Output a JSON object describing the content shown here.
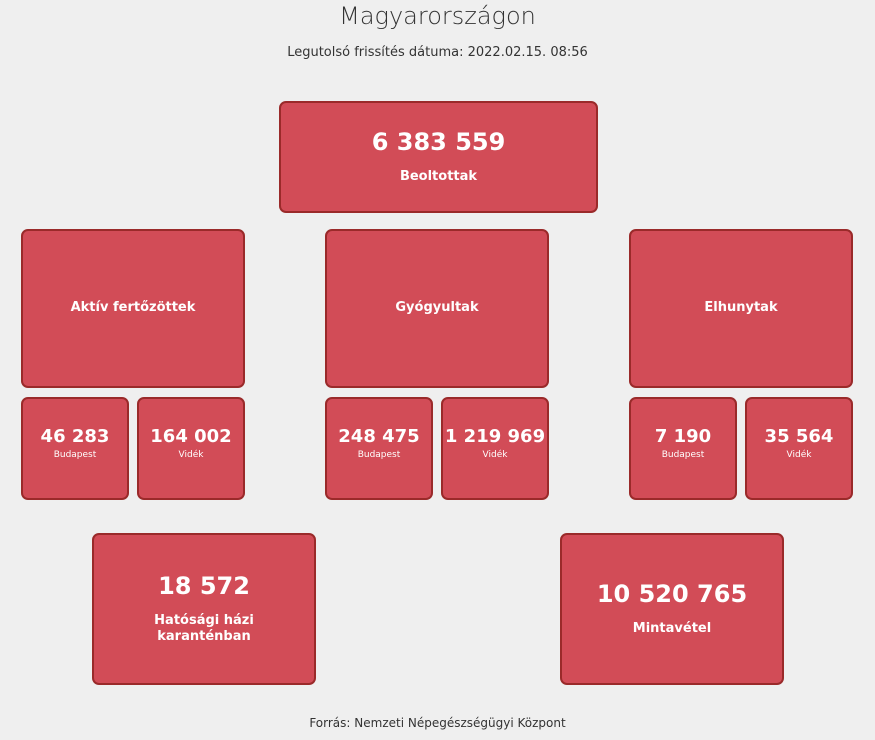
{
  "header": {
    "title": "Magyarországon",
    "updated": "Legutolsó frissítés dátuma: 2022.02.15. 08:56"
  },
  "vaccinated": {
    "value": "6 383 559",
    "label": "Beoltottak"
  },
  "groups": [
    {
      "label": "Aktív fertőzöttek",
      "budapest": "46 283",
      "videk": "164 002"
    },
    {
      "label": "Gyógyultak",
      "budapest": "248 475",
      "videk": "1 219 969"
    },
    {
      "label": "Elhunytak",
      "budapest": "7 190",
      "videk": "35 564"
    }
  ],
  "sublabels": {
    "budapest": "Budapest",
    "videk": "Vidék"
  },
  "quarantine": {
    "value": "18 572",
    "label": "Hatósági házi karanténban"
  },
  "samples": {
    "value": "10 520 765",
    "label": "Mintavétel"
  },
  "footer": "Forrás: Nemzeti Népegészségügyi Központ",
  "colors": {
    "box": "#d24c57",
    "border": "#9a2a2a",
    "background": "#efefef"
  }
}
